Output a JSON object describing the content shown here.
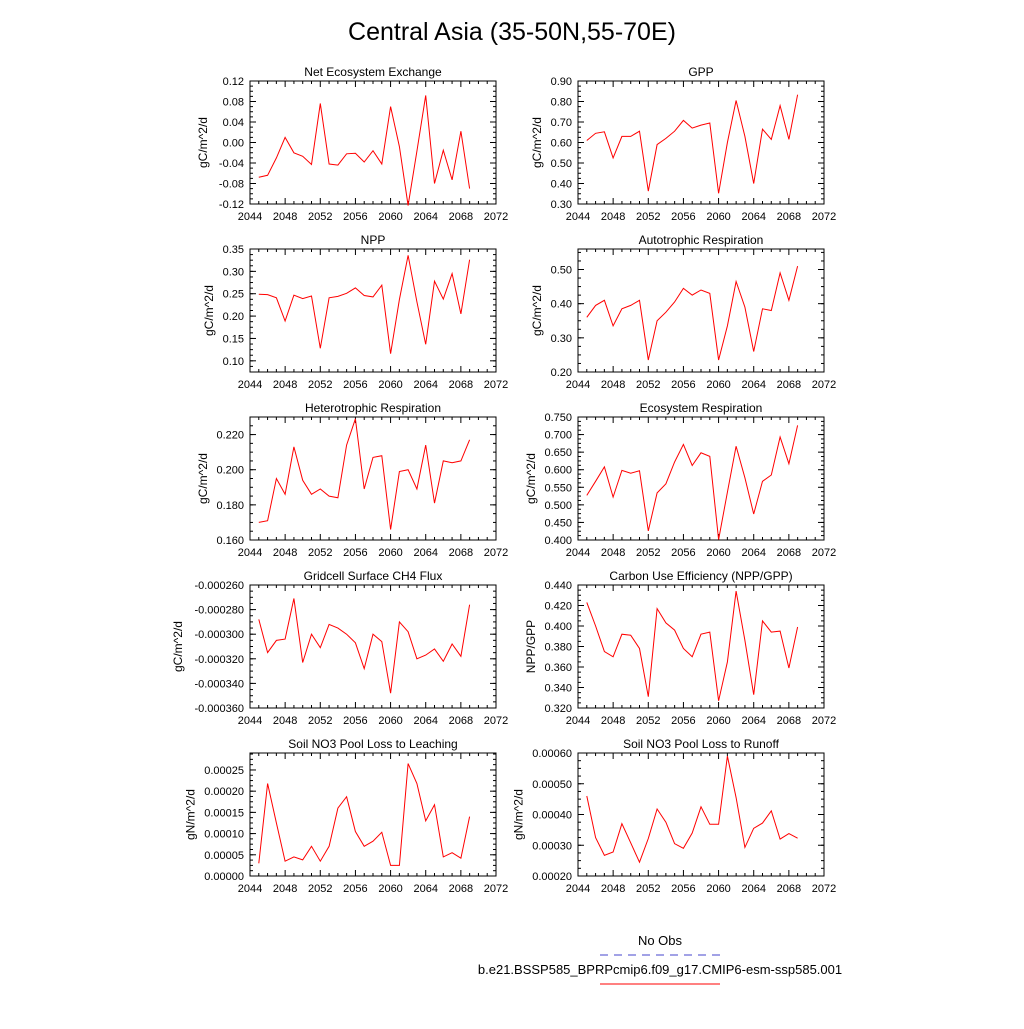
{
  "page_title": "Central Asia (35-50N,55-70E)",
  "legend": {
    "obs_label": "No Obs",
    "obs_color": "#4444cc",
    "model_label": "b.e21.BSSP585_BPRPcmip6.f09_g17.CMIP6-esm-ssp585.001",
    "model_color": "#ff0000"
  },
  "chart_data": [
    {
      "type": "line",
      "title": "Net Ecosystem Exchange",
      "ylabel": "gC/m^2/d",
      "xlim": [
        2044,
        2072
      ],
      "xticks": [
        2044,
        2048,
        2052,
        2056,
        2060,
        2064,
        2068,
        2072
      ],
      "xtick_labels": [
        "2044",
        "2048",
        "2052",
        "2056",
        "2060",
        "2064",
        "2068",
        "2072"
      ],
      "ylim": [
        -0.12,
        0.12
      ],
      "yticks": [
        -0.12,
        -0.08,
        -0.04,
        0.0,
        0.04,
        0.08,
        0.12
      ],
      "ytick_labels": [
        "-0.12",
        "-0.08",
        "-0.04",
        "0.00",
        "0.04",
        "0.08",
        "0.12"
      ],
      "x": [
        2045,
        2046,
        2047,
        2048,
        2049,
        2050,
        2051,
        2052,
        2053,
        2054,
        2055,
        2056,
        2057,
        2058,
        2059,
        2060,
        2061,
        2062,
        2063,
        2064,
        2065,
        2066,
        2067,
        2068,
        2069
      ],
      "values": [
        -0.068,
        -0.064,
        -0.03,
        0.01,
        -0.02,
        -0.027,
        -0.043,
        0.076,
        -0.042,
        -0.044,
        -0.022,
        -0.021,
        -0.038,
        -0.016,
        -0.042,
        0.07,
        -0.008,
        -0.123,
        -0.017,
        0.092,
        -0.08,
        -0.015,
        -0.073,
        0.022,
        -0.09
      ]
    },
    {
      "type": "line",
      "title": "GPP",
      "ylabel": "gC/m^2/d",
      "xlim": [
        2044,
        2072
      ],
      "xticks": [
        2044,
        2048,
        2052,
        2056,
        2060,
        2064,
        2068,
        2072
      ],
      "xtick_labels": [
        "2044",
        "2048",
        "2052",
        "2056",
        "2060",
        "2064",
        "2068",
        "2072"
      ],
      "ylim": [
        0.3,
        0.9
      ],
      "yticks": [
        0.3,
        0.4,
        0.5,
        0.6,
        0.7,
        0.8,
        0.9
      ],
      "ytick_labels": [
        "0.30",
        "0.40",
        "0.50",
        "0.60",
        "0.70",
        "0.80",
        "0.90"
      ],
      "x": [
        2045,
        2046,
        2047,
        2048,
        2049,
        2050,
        2051,
        2052,
        2053,
        2054,
        2055,
        2056,
        2057,
        2058,
        2059,
        2060,
        2061,
        2062,
        2063,
        2064,
        2065,
        2066,
        2067,
        2068,
        2069
      ],
      "values": [
        0.61,
        0.645,
        0.652,
        0.525,
        0.63,
        0.63,
        0.655,
        0.363,
        0.59,
        0.62,
        0.655,
        0.708,
        0.67,
        0.685,
        0.695,
        0.352,
        0.6,
        0.805,
        0.63,
        0.4,
        0.665,
        0.615,
        0.78,
        0.615,
        0.833
      ]
    },
    {
      "type": "line",
      "title": "NPP",
      "ylabel": "gC/m^2/d",
      "xlim": [
        2044,
        2072
      ],
      "xticks": [
        2044,
        2048,
        2052,
        2056,
        2060,
        2064,
        2068,
        2072
      ],
      "xtick_labels": [
        "2044",
        "2048",
        "2052",
        "2056",
        "2060",
        "2064",
        "2068",
        "2072"
      ],
      "ylim": [
        0.075,
        0.35
      ],
      "yticks": [
        0.1,
        0.15,
        0.2,
        0.25,
        0.3,
        0.35
      ],
      "ytick_labels": [
        "0.10",
        "0.15",
        "0.20",
        "0.25",
        "0.30",
        "0.35"
      ],
      "x": [
        2045,
        2046,
        2047,
        2048,
        2049,
        2050,
        2051,
        2052,
        2053,
        2054,
        2055,
        2056,
        2057,
        2058,
        2059,
        2060,
        2061,
        2062,
        2063,
        2064,
        2065,
        2066,
        2067,
        2068,
        2069
      ],
      "values": [
        0.249,
        0.248,
        0.241,
        0.189,
        0.247,
        0.239,
        0.245,
        0.128,
        0.241,
        0.244,
        0.251,
        0.263,
        0.246,
        0.243,
        0.269,
        0.116,
        0.237,
        0.336,
        0.232,
        0.137,
        0.278,
        0.238,
        0.295,
        0.205,
        0.326
      ]
    },
    {
      "type": "line",
      "title": "Autotrophic Respiration",
      "ylabel": "gC/m^2/d",
      "xlim": [
        2044,
        2072
      ],
      "xticks": [
        2044,
        2048,
        2052,
        2056,
        2060,
        2064,
        2068,
        2072
      ],
      "xtick_labels": [
        "2044",
        "2048",
        "2052",
        "2056",
        "2060",
        "2064",
        "2068",
        "2072"
      ],
      "ylim": [
        0.2,
        0.56
      ],
      "yticks": [
        0.2,
        0.3,
        0.4,
        0.5
      ],
      "ytick_labels": [
        "0.20",
        "0.30",
        "0.40",
        "0.50"
      ],
      "x": [
        2045,
        2046,
        2047,
        2048,
        2049,
        2050,
        2051,
        2052,
        2053,
        2054,
        2055,
        2056,
        2057,
        2058,
        2059,
        2060,
        2061,
        2062,
        2063,
        2064,
        2065,
        2066,
        2067,
        2068,
        2069
      ],
      "values": [
        0.36,
        0.395,
        0.41,
        0.335,
        0.385,
        0.395,
        0.41,
        0.235,
        0.35,
        0.375,
        0.405,
        0.445,
        0.425,
        0.44,
        0.43,
        0.235,
        0.335,
        0.465,
        0.39,
        0.26,
        0.385,
        0.38,
        0.49,
        0.41,
        0.51
      ]
    },
    {
      "type": "line",
      "title": "Heterotrophic Respiration",
      "ylabel": "gC/m^2/d",
      "xlim": [
        2044,
        2072
      ],
      "xticks": [
        2044,
        2048,
        2052,
        2056,
        2060,
        2064,
        2068,
        2072
      ],
      "xtick_labels": [
        "2044",
        "2048",
        "2052",
        "2056",
        "2060",
        "2064",
        "2068",
        "2072"
      ],
      "ylim": [
        0.16,
        0.23
      ],
      "yticks": [
        0.16,
        0.18,
        0.2,
        0.22
      ],
      "ytick_labels": [
        "0.160",
        "0.180",
        "0.200",
        "0.220"
      ],
      "x": [
        2045,
        2046,
        2047,
        2048,
        2049,
        2050,
        2051,
        2052,
        2053,
        2054,
        2055,
        2056,
        2057,
        2058,
        2059,
        2060,
        2061,
        2062,
        2063,
        2064,
        2065,
        2066,
        2067,
        2068,
        2069
      ],
      "values": [
        0.17,
        0.171,
        0.195,
        0.186,
        0.213,
        0.194,
        0.186,
        0.189,
        0.185,
        0.184,
        0.214,
        0.229,
        0.189,
        0.207,
        0.208,
        0.166,
        0.199,
        0.2,
        0.189,
        0.214,
        0.181,
        0.205,
        0.204,
        0.205,
        0.217
      ]
    },
    {
      "type": "line",
      "title": "Ecosystem Respiration",
      "ylabel": "gC/m^2/d",
      "xlim": [
        2044,
        2072
      ],
      "xticks": [
        2044,
        2048,
        2052,
        2056,
        2060,
        2064,
        2068,
        2072
      ],
      "xtick_labels": [
        "2044",
        "2048",
        "2052",
        "2056",
        "2060",
        "2064",
        "2068",
        "2072"
      ],
      "ylim": [
        0.4,
        0.75
      ],
      "yticks": [
        0.4,
        0.45,
        0.5,
        0.55,
        0.6,
        0.65,
        0.7,
        0.75
      ],
      "ytick_labels": [
        "0.400",
        "0.450",
        "0.500",
        "0.550",
        "0.600",
        "0.650",
        "0.700",
        "0.750"
      ],
      "x": [
        2045,
        2046,
        2047,
        2048,
        2049,
        2050,
        2051,
        2052,
        2053,
        2054,
        2055,
        2056,
        2057,
        2058,
        2059,
        2060,
        2061,
        2062,
        2063,
        2064,
        2065,
        2066,
        2067,
        2068,
        2069
      ],
      "values": [
        0.527,
        0.567,
        0.608,
        0.522,
        0.598,
        0.59,
        0.597,
        0.426,
        0.534,
        0.56,
        0.622,
        0.672,
        0.612,
        0.648,
        0.638,
        0.401,
        0.536,
        0.667,
        0.577,
        0.474,
        0.567,
        0.585,
        0.693,
        0.617,
        0.726
      ]
    },
    {
      "type": "line",
      "title": "Gridcell Surface CH4 Flux",
      "ylabel": "gC/m^2/d",
      "xlim": [
        2044,
        2072
      ],
      "xticks": [
        2044,
        2048,
        2052,
        2056,
        2060,
        2064,
        2068,
        2072
      ],
      "xtick_labels": [
        "2044",
        "2048",
        "2052",
        "2056",
        "2060",
        "2064",
        "2068",
        "2072"
      ],
      "ylim": [
        -0.00036,
        -0.00026
      ],
      "yticks": [
        -0.00036,
        -0.00034,
        -0.00032,
        -0.0003,
        -0.00028,
        -0.00026
      ],
      "ytick_labels": [
        "-0.000360",
        "-0.000340",
        "-0.000320",
        "-0.000300",
        "-0.000280",
        "-0.000260"
      ],
      "x": [
        2045,
        2046,
        2047,
        2048,
        2049,
        2050,
        2051,
        2052,
        2053,
        2054,
        2055,
        2056,
        2057,
        2058,
        2059,
        2060,
        2061,
        2062,
        2063,
        2064,
        2065,
        2066,
        2067,
        2068,
        2069
      ],
      "values": [
        -0.000288,
        -0.000315,
        -0.000305,
        -0.000304,
        -0.000271,
        -0.000323,
        -0.0003,
        -0.000311,
        -0.000292,
        -0.000295,
        -0.0003,
        -0.000307,
        -0.000328,
        -0.0003,
        -0.000306,
        -0.000348,
        -0.00029,
        -0.000298,
        -0.00032,
        -0.000317,
        -0.000312,
        -0.000322,
        -0.000308,
        -0.000318,
        -0.000276
      ]
    },
    {
      "type": "line",
      "title": "Carbon Use Efficiency (NPP/GPP)",
      "ylabel": "NPP/GPP",
      "xlim": [
        2044,
        2072
      ],
      "xticks": [
        2044,
        2048,
        2052,
        2056,
        2060,
        2064,
        2068,
        2072
      ],
      "xtick_labels": [
        "2044",
        "2048",
        "2052",
        "2056",
        "2060",
        "2064",
        "2068",
        "2072"
      ],
      "ylim": [
        0.32,
        0.44
      ],
      "yticks": [
        0.32,
        0.34,
        0.36,
        0.38,
        0.4,
        0.42,
        0.44
      ],
      "ytick_labels": [
        "0.320",
        "0.340",
        "0.360",
        "0.380",
        "0.400",
        "0.420",
        "0.440"
      ],
      "x": [
        2045,
        2046,
        2047,
        2048,
        2049,
        2050,
        2051,
        2052,
        2053,
        2054,
        2055,
        2056,
        2057,
        2058,
        2059,
        2060,
        2061,
        2062,
        2063,
        2064,
        2065,
        2066,
        2067,
        2068,
        2069
      ],
      "values": [
        0.423,
        0.4,
        0.375,
        0.37,
        0.392,
        0.391,
        0.378,
        0.331,
        0.417,
        0.403,
        0.396,
        0.378,
        0.37,
        0.392,
        0.394,
        0.327,
        0.365,
        0.434,
        0.386,
        0.333,
        0.405,
        0.394,
        0.395,
        0.359,
        0.399
      ]
    },
    {
      "type": "line",
      "title": "Soil NO3 Pool Loss to Leaching",
      "ylabel": "gN/m^2/d",
      "xlim": [
        2044,
        2072
      ],
      "xticks": [
        2044,
        2048,
        2052,
        2056,
        2060,
        2064,
        2068,
        2072
      ],
      "xtick_labels": [
        "2044",
        "2048",
        "2052",
        "2056",
        "2060",
        "2064",
        "2068",
        "2072"
      ],
      "ylim": [
        0.0,
        0.00029
      ],
      "yticks": [
        0.0,
        5e-05,
        0.0001,
        0.00015,
        0.0002,
        0.00025
      ],
      "ytick_labels": [
        "0.00000",
        "0.00005",
        "0.00010",
        "0.00015",
        "0.00020",
        "0.00025"
      ],
      "x": [
        2045,
        2046,
        2047,
        2048,
        2049,
        2050,
        2051,
        2052,
        2053,
        2054,
        2055,
        2056,
        2057,
        2058,
        2059,
        2060,
        2061,
        2062,
        2063,
        2064,
        2065,
        2066,
        2067,
        2068,
        2069
      ],
      "values": [
        3e-05,
        0.000218,
        0.000125,
        3.5e-05,
        4.5e-05,
        3.8e-05,
        7e-05,
        3.5e-05,
        7e-05,
        0.00016,
        0.000187,
        0.000105,
        7e-05,
        8.2e-05,
        0.000103,
        2.5e-05,
        2.5e-05,
        0.000265,
        0.000218,
        0.00013,
        0.000168,
        4.5e-05,
        5.5e-05,
        4.2e-05,
        0.00014
      ]
    },
    {
      "type": "line",
      "title": "Soil NO3 Pool Loss to Runoff",
      "ylabel": "gN/m^2/d",
      "xlim": [
        2044,
        2072
      ],
      "xticks": [
        2044,
        2048,
        2052,
        2056,
        2060,
        2064,
        2068,
        2072
      ],
      "xtick_labels": [
        "2044",
        "2048",
        "2052",
        "2056",
        "2060",
        "2064",
        "2068",
        "2072"
      ],
      "ylim": [
        0.0002,
        0.0006
      ],
      "yticks": [
        0.0002,
        0.0003,
        0.0004,
        0.0005,
        0.0006
      ],
      "ytick_labels": [
        "0.00020",
        "0.00030",
        "0.00040",
        "0.00050",
        "0.00060"
      ],
      "x": [
        2045,
        2046,
        2047,
        2048,
        2049,
        2050,
        2051,
        2052,
        2053,
        2054,
        2055,
        2056,
        2057,
        2058,
        2059,
        2060,
        2061,
        2062,
        2063,
        2064,
        2065,
        2066,
        2067,
        2068,
        2069
      ],
      "values": [
        0.00046,
        0.000325,
        0.000267,
        0.000278,
        0.00037,
        0.000308,
        0.000245,
        0.000322,
        0.000418,
        0.000375,
        0.000305,
        0.00029,
        0.00034,
        0.000425,
        0.000368,
        0.000368,
        0.00059,
        0.000455,
        0.000293,
        0.000355,
        0.000372,
        0.000412,
        0.00032,
        0.000338,
        0.000323
      ]
    }
  ]
}
